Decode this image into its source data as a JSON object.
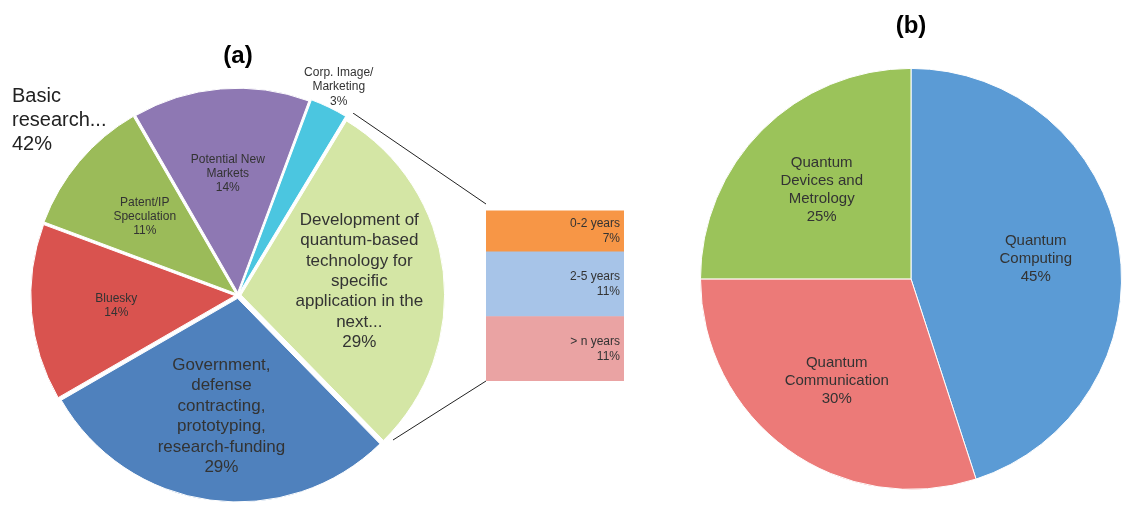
{
  "chart_data": [
    {
      "type": "pie",
      "title": "(a)",
      "categories": [
        "Bluesky",
        "Patent/IP Speculation",
        "Potential New Markets",
        "Corp. Image/ Marketing",
        "Development of quantum-based technology for specific application in the next...",
        "Government, defense contracting, prototyping, research-funding"
      ],
      "values": [
        14,
        11,
        14,
        3,
        29,
        29
      ],
      "colors": [
        "#d9534f",
        "#9bbb59",
        "#8e78b3",
        "#4bc6e0",
        "#d4e6a5",
        "#4f81bd"
      ],
      "value_labels": [
        "14%",
        "11%",
        "14%",
        "3%",
        "29%",
        "29%"
      ],
      "annotations": [
        "Basic research... 42%"
      ]
    },
    {
      "type": "bar",
      "stacked": true,
      "categories": [
        null
      ],
      "series": [
        {
          "name": "> n years",
          "color": "#eaa3a3",
          "values": [
            11
          ],
          "value_labels": [
            "11%"
          ]
        },
        {
          "name": "2-5 years",
          "color": "#a7c4e8",
          "values": [
            11
          ],
          "value_labels": [
            "11%"
          ]
        },
        {
          "name": "0-2 years",
          "color": "#f79646",
          "values": [
            7
          ],
          "value_labels": [
            "7%"
          ]
        }
      ]
    },
    {
      "type": "pie",
      "title": "(b)",
      "categories": [
        "Quantum Computing",
        "Quantum Communication",
        "Quantum Devices and Metrology"
      ],
      "values": [
        45,
        30,
        25
      ],
      "colors": [
        "#5b9bd5",
        "#ec7a78",
        "#9bc35a"
      ],
      "value_labels": [
        "45%",
        "30%",
        "25%"
      ]
    }
  ]
}
